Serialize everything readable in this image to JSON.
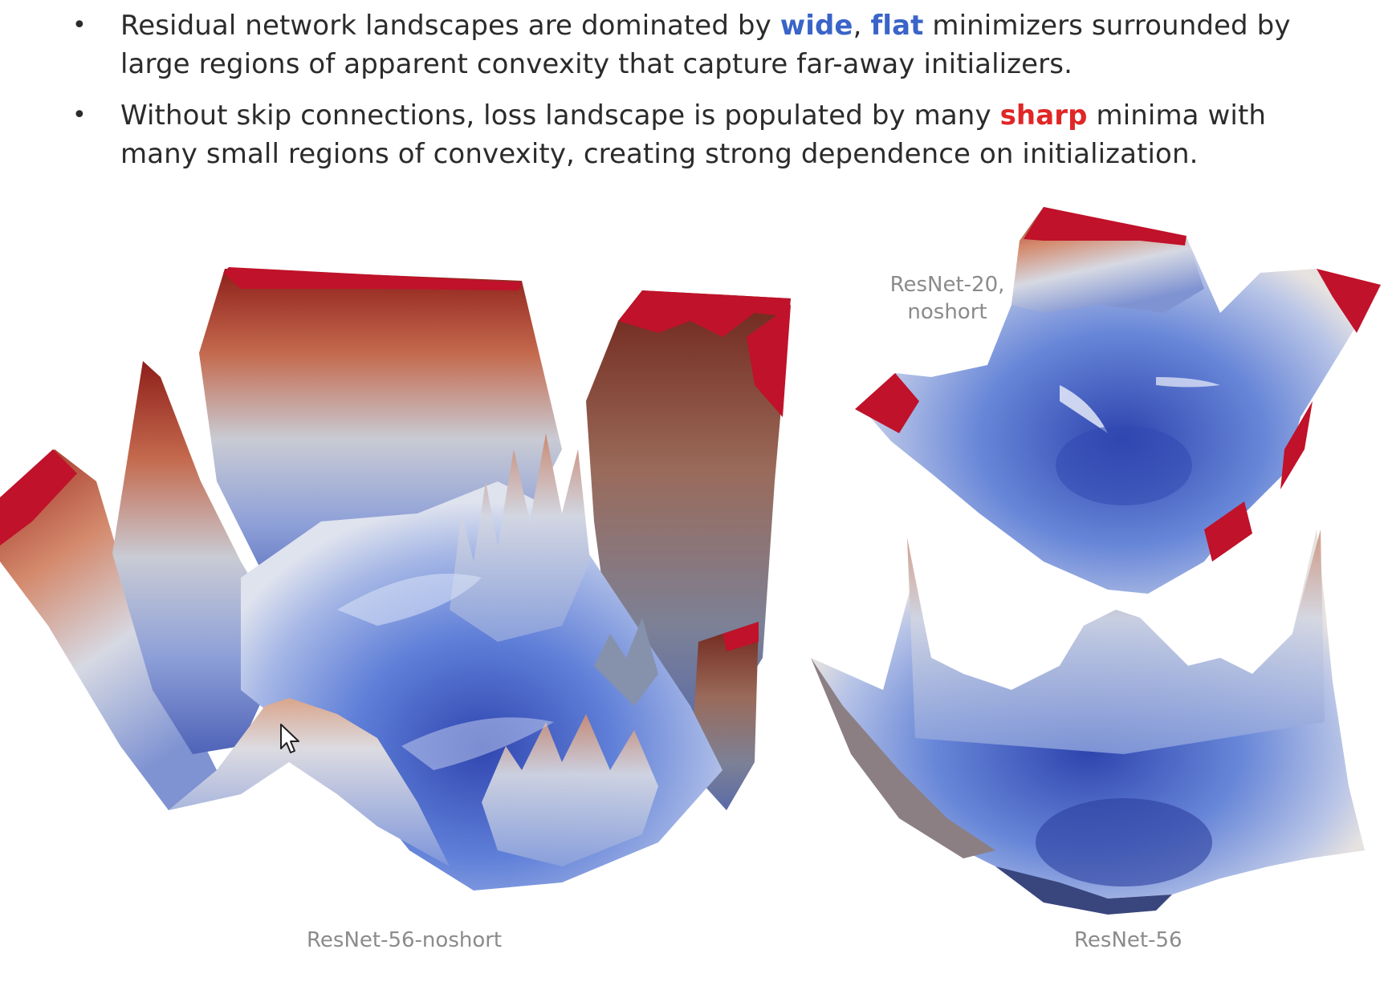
{
  "bullets": [
    {
      "parts": [
        {
          "text": "Residual network landscapes are dominated by ",
          "style": "plain"
        },
        {
          "text": "wide",
          "style": "blue"
        },
        {
          "text": ", ",
          "style": "plain"
        },
        {
          "text": "flat",
          "style": "blue"
        },
        {
          "text": " minimizers surrounded by large regions of apparent convexity that capture far-away initializers.",
          "style": "plain"
        }
      ]
    },
    {
      "parts": [
        {
          "text": "Without skip connections, loss landscape is populated by many ",
          "style": "plain"
        },
        {
          "text": "sharp",
          "style": "red"
        },
        {
          "text": " minima with many small regions of convexity, creating strong dependence on initialization.",
          "style": "plain"
        }
      ]
    }
  ],
  "captions": {
    "left": "ResNet-56-noshort",
    "right": "ResNet-56",
    "inset_line1": "ResNet-20,",
    "inset_line2": "noshort"
  },
  "colors": {
    "blue_highlight": "#3a64c8",
    "red_highlight": "#e02626",
    "surface_low": "#3b57c4",
    "surface_mid": "#c7cfde",
    "surface_high": "#b3261e",
    "cap_red": "#c0122a"
  },
  "icons": {
    "cursor": "mouse-pointer-icon"
  }
}
